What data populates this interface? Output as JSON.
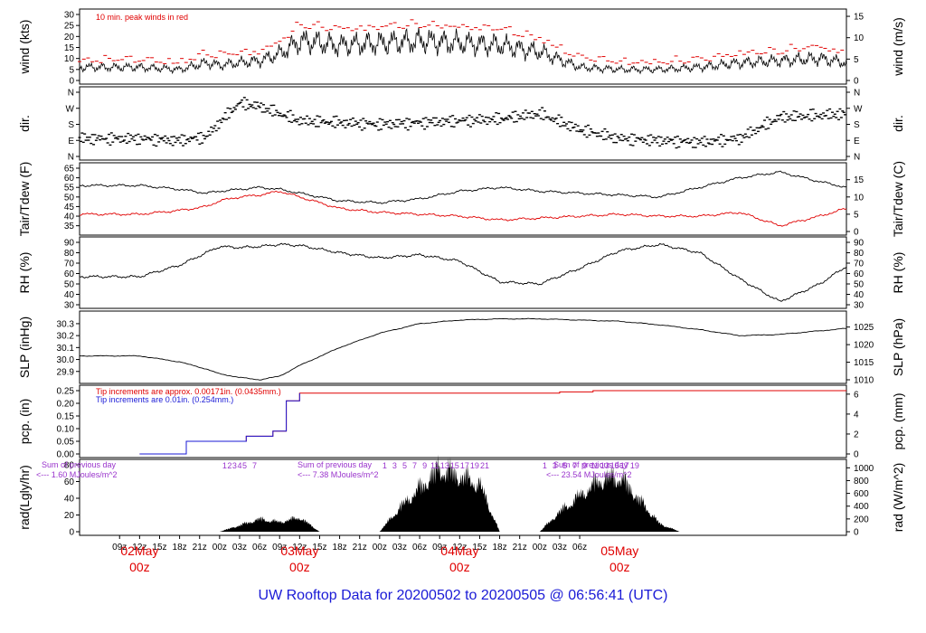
{
  "page": {
    "title": "UW Rooftop Data for 20200502  to  20200505 @ 06:56:41  (UTC)"
  },
  "colors": {
    "black": "#000000",
    "red": "#e00000",
    "blue": "#1a1ad6",
    "purple": "#9933cc",
    "title": "#1a1ad6"
  },
  "chart_data": [
    {
      "type": "line",
      "panel": "wind",
      "ylabel_left": "wind (kts)",
      "ylabel_right": "wind (m/s)",
      "ylim": [
        0,
        30
      ],
      "yticks_left": [
        "0",
        "5",
        "10",
        "15",
        "20",
        "25",
        "30"
      ],
      "yticks_right": [
        "0",
        "5",
        "10",
        "15"
      ],
      "annotation": "10 min. peak winds in red",
      "x_hours": [
        0,
        6,
        10,
        12,
        15,
        18,
        21,
        24,
        30,
        36,
        42,
        48,
        54,
        60,
        66,
        72,
        78,
        84,
        90,
        96,
        102,
        106
      ],
      "series": [
        {
          "values": [
            6,
            5,
            8,
            7,
            8,
            9,
            12,
            18,
            16,
            17,
            18,
            17,
            16,
            13,
            6,
            5,
            5,
            6,
            8,
            9,
            10,
            8
          ]
        },
        {
          "values": [
            8,
            7,
            11,
            10,
            11,
            12,
            16,
            24,
            22,
            23,
            24,
            23,
            22,
            18,
            9,
            7,
            7,
            8,
            11,
            12,
            14,
            11
          ]
        }
      ]
    },
    {
      "type": "scatter",
      "panel": "dir",
      "ylabel_left": "dir.",
      "ylabel_right": "dir.",
      "yticks_left": [
        "N",
        "E",
        "S",
        "W",
        "N"
      ],
      "yticks_right": [
        "N",
        "E",
        "S",
        "W",
        "N"
      ],
      "x_hours": [
        0,
        6,
        10,
        12,
        15,
        18,
        21,
        24,
        30,
        36,
        42,
        48,
        54,
        60,
        66,
        72,
        78,
        84,
        90,
        96,
        102,
        106
      ],
      "values_deg": [
        100,
        90,
        110,
        190,
        300,
        280,
        240,
        200,
        190,
        180,
        190,
        200,
        210,
        240,
        150,
        100,
        90,
        80,
        100,
        220,
        230,
        240
      ]
    },
    {
      "type": "line",
      "panel": "temp",
      "ylabel_left": "Tair/Tdew (F)",
      "ylabel_right": "Tair/Tdew (C)",
      "ylim": [
        32,
        65
      ],
      "yticks_left": [
        "35",
        "40",
        "45",
        "50",
        "55",
        "60",
        "65"
      ],
      "yticks_right": [
        "0",
        "5",
        "10",
        "15"
      ],
      "x_hours": [
        0,
        6,
        10,
        12,
        15,
        18,
        21,
        24,
        30,
        36,
        42,
        48,
        54,
        60,
        66,
        72,
        78,
        84,
        90,
        96,
        102,
        106
      ],
      "series": [
        {
          "name": "Tair",
          "color": "#000000",
          "values": [
            56,
            54,
            52,
            53,
            54,
            55,
            54,
            52,
            48,
            47,
            49,
            53,
            55,
            53,
            52,
            51,
            50,
            55,
            60,
            63,
            58,
            55
          ]
        },
        {
          "name": "Tdew",
          "color": "#e00000",
          "values": [
            41,
            43,
            45,
            48,
            50,
            51,
            53,
            50,
            44,
            42,
            41,
            40,
            38,
            39,
            40,
            41,
            40,
            40,
            42,
            35,
            40,
            44
          ]
        }
      ]
    },
    {
      "type": "line",
      "panel": "rh",
      "ylabel_left": "RH (%)",
      "ylabel_right": "RH (%)",
      "ylim": [
        30,
        90
      ],
      "yticks_left": [
        "30",
        "40",
        "50",
        "60",
        "70",
        "80",
        "90"
      ],
      "yticks_right": [
        "30",
        "40",
        "50",
        "60",
        "70",
        "80",
        "90"
      ],
      "x_hours": [
        0,
        6,
        10,
        12,
        15,
        18,
        21,
        24,
        30,
        36,
        42,
        48,
        54,
        60,
        66,
        72,
        78,
        84,
        90,
        96,
        102,
        106
      ],
      "values": [
        57,
        68,
        80,
        86,
        85,
        86,
        88,
        87,
        80,
        75,
        78,
        72,
        52,
        50,
        65,
        82,
        88,
        80,
        55,
        33,
        50,
        67
      ]
    },
    {
      "type": "line",
      "panel": "slp",
      "ylabel_left": "SLP (inHg)",
      "ylabel_right": "SLP (hPa)",
      "ylim": [
        29.83,
        30.36
      ],
      "yticks_left": [
        "29.9",
        "30.0",
        "30.1",
        "30.2",
        "30.3"
      ],
      "yticks_right": [
        "1010",
        "1015",
        "1020",
        "1025"
      ],
      "x_hours": [
        0,
        6,
        10,
        12,
        15,
        18,
        21,
        24,
        30,
        36,
        42,
        48,
        54,
        60,
        66,
        72,
        78,
        84,
        90,
        96,
        102,
        106
      ],
      "values": [
        30.03,
        29.98,
        29.92,
        29.88,
        29.85,
        29.83,
        29.86,
        29.95,
        30.1,
        30.22,
        30.3,
        30.33,
        30.34,
        30.34,
        30.33,
        30.32,
        30.29,
        30.25,
        30.2,
        30.21,
        30.24,
        30.26
      ]
    },
    {
      "type": "line",
      "panel": "pcp",
      "ylabel_left": "pcp. (in)",
      "ylabel_right": "pcp. (mm)",
      "ylim": [
        0,
        0.25
      ],
      "yticks_left": [
        "0.00",
        "0.05",
        "0.10",
        "0.15",
        "0.20",
        "0.25"
      ],
      "yticks_right": [
        "0",
        "2",
        "4",
        "6"
      ],
      "annotations": [
        "Tip increments are approx. 0.00171in. (0.0435mm.)",
        "Tip increments are 0.01in. (0.254mm.)"
      ],
      "series": [
        {
          "name": "approx",
          "color": "#e00000",
          "x_hours": [
            0,
            6,
            7,
            12,
            16,
            20,
            22,
            24,
            63,
            68,
            106
          ],
          "values": [
            0,
            0,
            0.05,
            0.05,
            0.07,
            0.09,
            0.21,
            0.24,
            0.245,
            0.25,
            0.25
          ]
        },
        {
          "name": "0.01in",
          "color": "#1a1ad6",
          "x_hours": [
            0,
            6,
            7,
            12,
            16,
            20,
            22,
            24
          ],
          "values": [
            0,
            0,
            0.05,
            0.05,
            0.07,
            0.09,
            0.21,
            0.24
          ]
        }
      ]
    },
    {
      "type": "area",
      "panel": "rad",
      "ylabel_left": "rad(Lgly/hr)",
      "ylabel_right": "rad (W/m^2)",
      "ylim": [
        0,
        80
      ],
      "yticks_left": [
        "0",
        "20",
        "40",
        "60",
        "80"
      ],
      "yticks_right": [
        "0",
        "200",
        "400",
        "600",
        "800",
        "1000"
      ],
      "annotations": [
        {
          "label": "Sum of previous day",
          "text": "<--- 1.60 MJoules/m^2"
        },
        {
          "label": "Sum of previous day",
          "text": "<--- 7.38 MJoules/m^2"
        },
        {
          "label": "Sum of previous day",
          "text": "<--- 23.54 MJoules/m^2"
        }
      ],
      "hour_markers": [
        [
          "1",
          "2",
          "3",
          "4",
          "5",
          "7"
        ],
        [
          "1",
          "3",
          "5",
          "7",
          "9",
          "11",
          "13",
          "15",
          "17",
          "19",
          "21"
        ],
        [
          "1",
          "3",
          "5",
          "7",
          "9",
          "11",
          "13",
          "15",
          "17",
          "19"
        ]
      ],
      "x_hours": [
        12,
        15,
        18,
        21,
        24,
        27,
        36,
        39,
        42,
        45,
        48,
        51,
        54,
        60,
        63,
        66,
        69,
        72,
        75,
        78,
        81
      ],
      "values": [
        0,
        8,
        16,
        12,
        18,
        0,
        0,
        30,
        55,
        80,
        70,
        60,
        0,
        0,
        25,
        45,
        65,
        70,
        40,
        10,
        0
      ]
    }
  ],
  "x_axis": {
    "hour_ticks": [
      "09z",
      "12z",
      "15z",
      "18z",
      "21z",
      "00z",
      "03z",
      "06z",
      "09z",
      "12z",
      "15z",
      "18z",
      "21z",
      "00z",
      "03z",
      "06z",
      "09z",
      "12z",
      "15z",
      "18z",
      "21z",
      "00z",
      "03z",
      "06z"
    ],
    "day_labels": [
      {
        "line1": "02May",
        "line2": "00z"
      },
      {
        "line1": "03May",
        "line2": "00z"
      },
      {
        "line1": "04May",
        "line2": "00z"
      },
      {
        "line1": "05May",
        "line2": "00z"
      }
    ]
  }
}
